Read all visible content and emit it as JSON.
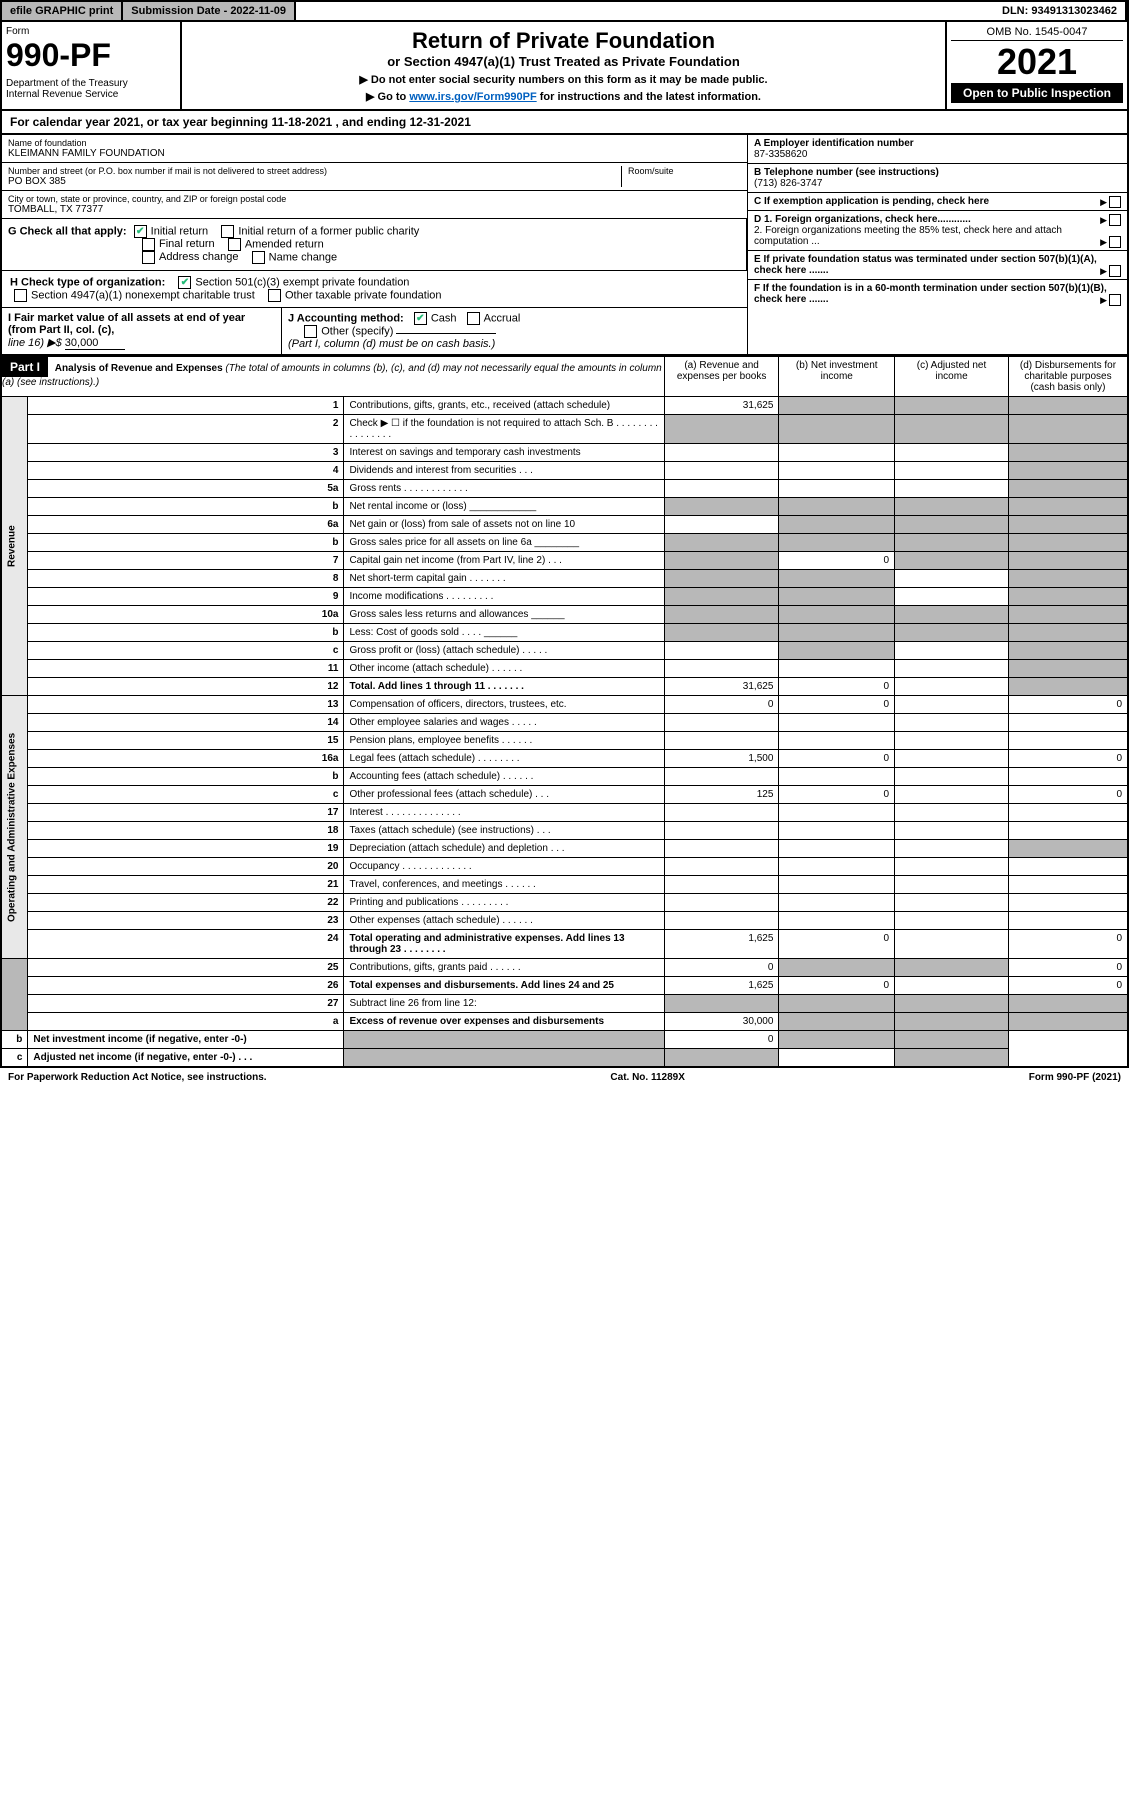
{
  "topbar": {
    "efile": "efile GRAPHIC print",
    "subdate_label": "Submission Date - 2022-11-09",
    "dln": "DLN: 93491313023462"
  },
  "header": {
    "form_label": "Form",
    "form_num": "990-PF",
    "dept": "Department of the Treasury\nInternal Revenue Service",
    "title": "Return of Private Foundation",
    "subtitle": "or Section 4947(a)(1) Trust Treated as Private Foundation",
    "note1": "▶ Do not enter social security numbers on this form as it may be made public.",
    "note2_pre": "▶ Go to ",
    "note2_link": "www.irs.gov/Form990PF",
    "note2_post": " for instructions and the latest information.",
    "omb": "OMB No. 1545-0047",
    "year": "2021",
    "inspect": "Open to Public Inspection"
  },
  "calendar": "For calendar year 2021, or tax year beginning 11-18-2021            , and ending 12-31-2021",
  "info": {
    "name_label": "Name of foundation",
    "name": "KLEIMANN FAMILY FOUNDATION",
    "addr_label": "Number and street (or P.O. box number if mail is not delivered to street address)",
    "addr": "PO BOX 385",
    "room_label": "Room/suite",
    "city_label": "City or town, state or province, country, and ZIP or foreign postal code",
    "city": "TOMBALL, TX  77377",
    "ein_label": "A Employer identification number",
    "ein": "87-3358620",
    "phone_label": "B Telephone number (see instructions)",
    "phone": "(713) 826-3747",
    "c_label": "C If exemption application is pending, check here",
    "d1": "D 1. Foreign organizations, check here............",
    "d2": "2. Foreign organizations meeting the 85% test, check here and attach computation ...",
    "e_label": "E  If private foundation status was terminated under section 507(b)(1)(A), check here .......",
    "f_label": "F  If the foundation is in a 60-month termination under section 507(b)(1)(B), check here .......",
    "g_label": "G Check all that apply:",
    "g_opts": [
      "Initial return",
      "Initial return of a former public charity",
      "Final return",
      "Amended return",
      "Address change",
      "Name change"
    ],
    "h_label": "H Check type of organization:",
    "h_opts": [
      "Section 501(c)(3) exempt private foundation",
      "Section 4947(a)(1) nonexempt charitable trust",
      "Other taxable private foundation"
    ],
    "i_label": "I Fair market value of all assets at end of year (from Part II, col. (c),",
    "i_line": "line 16) ▶$ ",
    "i_val": "30,000",
    "j_label": "J Accounting method:",
    "j_cash": "Cash",
    "j_accrual": "Accrual",
    "j_other": "Other (specify)",
    "j_note": "(Part I, column (d) must be on cash basis.)"
  },
  "part1": {
    "label": "Part I",
    "title": "Analysis of Revenue and Expenses",
    "note": "(The total of amounts in columns (b), (c), and (d) may not necessarily equal the amounts in column (a) (see instructions).)",
    "cols": {
      "a": "(a)   Revenue and expenses per books",
      "b": "(b)   Net investment income",
      "c": "(c)   Adjusted net income",
      "d": "(d)  Disbursements for charitable purposes (cash basis only)"
    }
  },
  "sections": {
    "revenue": "Revenue",
    "opex": "Operating and Administrative Expenses"
  },
  "rows": [
    {
      "n": "1",
      "d": "Contributions, gifts, grants, etc., received (attach schedule)",
      "a": "31,625",
      "b": "",
      "c": "",
      "dd": "",
      "sb": true,
      "sc": true,
      "sd": true
    },
    {
      "n": "2",
      "d": "Check ▶ ☐ if the foundation is not required to attach Sch. B  .  .  .  .  .  .  .  .  .  .  .  .  .  .  .  .",
      "a": "",
      "sa": true,
      "sb": true,
      "sc": true,
      "sd": true
    },
    {
      "n": "3",
      "d": "Interest on savings and temporary cash investments",
      "a": "",
      "b": "",
      "c": "",
      "dd": "",
      "sd": true
    },
    {
      "n": "4",
      "d": "Dividends and interest from securities  .  .  .",
      "a": "",
      "b": "",
      "c": "",
      "dd": "",
      "sd": true
    },
    {
      "n": "5a",
      "d": "Gross rents  .  .  .  .  .  .  .  .  .  .  .  .",
      "a": "",
      "b": "",
      "c": "",
      "dd": "",
      "sd": true
    },
    {
      "n": "b",
      "d": "Net rental income or (loss)  ____________",
      "a": "",
      "sa": true,
      "sb": true,
      "sc": true,
      "sd": true
    },
    {
      "n": "6a",
      "d": "Net gain or (loss) from sale of assets not on line 10",
      "a": "",
      "sb": true,
      "sc": true,
      "sd": true
    },
    {
      "n": "b",
      "d": "Gross sales price for all assets on line 6a ________",
      "a": "",
      "sa": true,
      "sb": true,
      "sc": true,
      "sd": true
    },
    {
      "n": "7",
      "d": "Capital gain net income (from Part IV, line 2)  .  .  .",
      "sa": true,
      "b": "0",
      "sc": true,
      "sd": true
    },
    {
      "n": "8",
      "d": "Net short-term capital gain  .  .  .  .  .  .  .",
      "sa": true,
      "sb": true,
      "c": "",
      "sd": true
    },
    {
      "n": "9",
      "d": "Income modifications  .  .  .  .  .  .  .  .  .",
      "sa": true,
      "sb": true,
      "c": "",
      "sd": true
    },
    {
      "n": "10a",
      "d": "Gross sales less returns and allowances  ______",
      "sa": true,
      "sb": true,
      "sc": true,
      "sd": true
    },
    {
      "n": "b",
      "d": "Less: Cost of goods sold  .  .  .  .    ______",
      "sa": true,
      "sb": true,
      "sc": true,
      "sd": true
    },
    {
      "n": "c",
      "d": "Gross profit or (loss) (attach schedule)  .  .  .  .  .",
      "a": "",
      "sb": true,
      "c": "",
      "sd": true
    },
    {
      "n": "11",
      "d": "Other income (attach schedule)  .  .  .  .  .  .",
      "a": "",
      "b": "",
      "c": "",
      "sd": true
    },
    {
      "n": "12",
      "d": "Total. Add lines 1 through 11  .  .  .  .  .  .  .",
      "bold": true,
      "a": "31,625",
      "b": "0",
      "c": "",
      "sd": true
    },
    {
      "n": "13",
      "d": "Compensation of officers, directors, trustees, etc.",
      "a": "0",
      "b": "0",
      "c": "",
      "dd": "0",
      "sec": "opex"
    },
    {
      "n": "14",
      "d": "Other employee salaries and wages  .  .  .  .  .",
      "a": "",
      "b": "",
      "c": "",
      "dd": ""
    },
    {
      "n": "15",
      "d": "Pension plans, employee benefits  .  .  .  .  .  .",
      "a": "",
      "b": "",
      "c": "",
      "dd": ""
    },
    {
      "n": "16a",
      "d": "Legal fees (attach schedule)  .  .  .  .  .  .  .  .",
      "a": "1,500",
      "b": "0",
      "c": "",
      "dd": "0"
    },
    {
      "n": "b",
      "d": "Accounting fees (attach schedule)  .  .  .  .  .  .",
      "a": "",
      "b": "",
      "c": "",
      "dd": ""
    },
    {
      "n": "c",
      "d": "Other professional fees (attach schedule)  .  .  .",
      "a": "125",
      "b": "0",
      "c": "",
      "dd": "0"
    },
    {
      "n": "17",
      "d": "Interest  .  .  .  .  .  .  .  .  .  .  .  .  .  .",
      "a": "",
      "b": "",
      "c": "",
      "dd": ""
    },
    {
      "n": "18",
      "d": "Taxes (attach schedule) (see instructions)  .  .  .",
      "a": "",
      "b": "",
      "c": "",
      "dd": ""
    },
    {
      "n": "19",
      "d": "Depreciation (attach schedule) and depletion  .  .  .",
      "a": "",
      "b": "",
      "c": "",
      "sd": true
    },
    {
      "n": "20",
      "d": "Occupancy  .  .  .  .  .  .  .  .  .  .  .  .  .",
      "a": "",
      "b": "",
      "c": "",
      "dd": ""
    },
    {
      "n": "21",
      "d": "Travel, conferences, and meetings  .  .  .  .  .  .",
      "a": "",
      "b": "",
      "c": "",
      "dd": ""
    },
    {
      "n": "22",
      "d": "Printing and publications  .  .  .  .  .  .  .  .  .",
      "a": "",
      "b": "",
      "c": "",
      "dd": ""
    },
    {
      "n": "23",
      "d": "Other expenses (attach schedule)  .  .  .  .  .  .",
      "a": "",
      "b": "",
      "c": "",
      "dd": ""
    },
    {
      "n": "24",
      "d": "Total operating and administrative expenses. Add lines 13 through 23  .  .  .  .  .  .  .  .",
      "bold": true,
      "a": "1,625",
      "b": "0",
      "c": "",
      "dd": "0"
    },
    {
      "n": "25",
      "d": "Contributions, gifts, grants paid  .  .  .  .  .  .",
      "a": "0",
      "sb": true,
      "sc": true,
      "dd": "0"
    },
    {
      "n": "26",
      "d": "Total expenses and disbursements. Add lines 24 and 25",
      "bold": true,
      "a": "1,625",
      "b": "0",
      "c": "",
      "dd": "0"
    },
    {
      "n": "27",
      "d": "Subtract line 26 from line 12:",
      "sa": true,
      "sb": true,
      "sc": true,
      "sd": true,
      "sec": "none"
    },
    {
      "n": "a",
      "d": "Excess of revenue over expenses and disbursements",
      "bold": true,
      "a": "30,000",
      "sb": true,
      "sc": true,
      "sd": true
    },
    {
      "n": "b",
      "d": "Net investment income (if negative, enter -0-)",
      "bold": true,
      "sa": true,
      "b": "0",
      "sc": true,
      "sd": true
    },
    {
      "n": "c",
      "d": "Adjusted net income (if negative, enter -0-)  .  .  .",
      "bold": true,
      "sa": true,
      "sb": true,
      "c": "",
      "sd": true
    }
  ],
  "footer": {
    "left": "For Paperwork Reduction Act Notice, see instructions.",
    "mid": "Cat. No. 11289X",
    "right": "Form 990-PF (2021)"
  }
}
